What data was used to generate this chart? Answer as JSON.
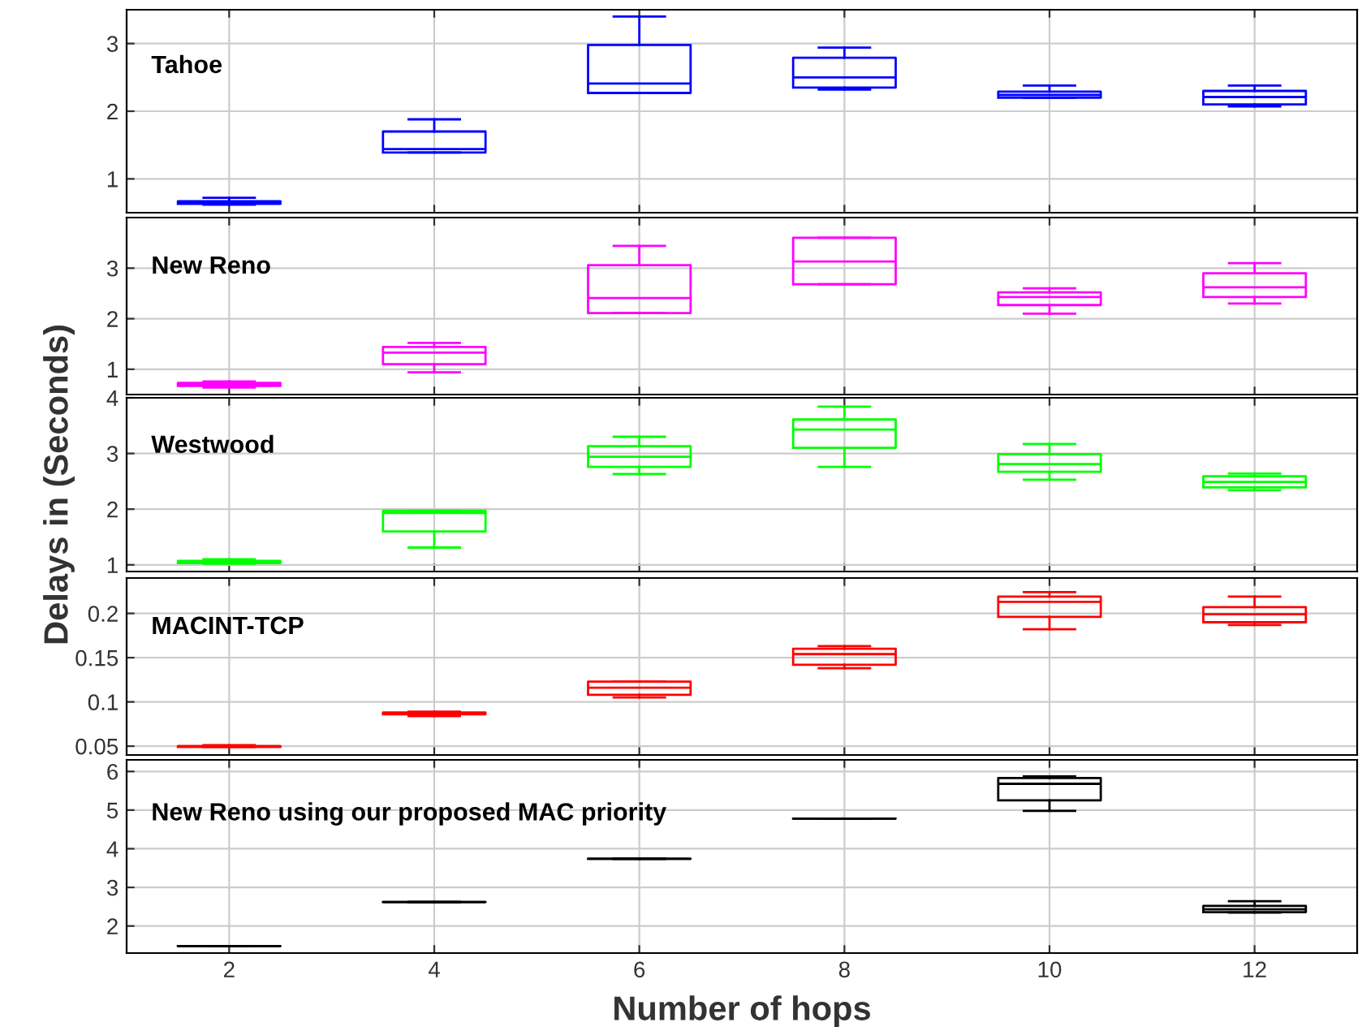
{
  "chart_data": [
    {
      "type": "box",
      "x": [
        2,
        4,
        6,
        8,
        10,
        12
      ],
      "color": "#0000ff",
      "annotations": [
        "Tahoe"
      ],
      "xlim": [
        1,
        13
      ],
      "xticks": [
        2,
        4,
        6,
        8,
        10,
        12
      ],
      "ylim": [
        0.5,
        3.5
      ],
      "yticks": [
        1,
        2,
        3
      ],
      "grid": true,
      "tick_labels": "y",
      "boxes": [
        {
          "low": 0.62,
          "q1": 0.63,
          "median": 0.65,
          "q3": 0.67,
          "high": 0.72
        },
        {
          "low": 1.39,
          "q1": 1.39,
          "median": 1.44,
          "q3": 1.7,
          "high": 1.88
        },
        {
          "low": 2.27,
          "q1": 2.27,
          "median": 2.41,
          "q3": 2.98,
          "high": 3.4
        },
        {
          "low": 2.32,
          "q1": 2.35,
          "median": 2.5,
          "q3": 2.79,
          "high": 2.94
        },
        {
          "low": 2.2,
          "q1": 2.2,
          "median": 2.24,
          "q3": 2.29,
          "high": 2.38
        },
        {
          "low": 2.07,
          "q1": 2.1,
          "median": 2.21,
          "q3": 2.3,
          "high": 2.38
        }
      ]
    },
    {
      "type": "box",
      "x": [
        2,
        4,
        6,
        8,
        10,
        12
      ],
      "color": "#ff00ff",
      "annotations": [
        "New Reno"
      ],
      "xlim": [
        1,
        13
      ],
      "xticks": [
        2,
        4,
        6,
        8,
        10,
        12
      ],
      "ylim": [
        0.5,
        4
      ],
      "yticks": [
        1,
        2,
        3
      ],
      "grid": true,
      "tick_labels": "y",
      "boxes": [
        {
          "low": 0.64,
          "q1": 0.67,
          "median": 0.7,
          "q3": 0.73,
          "high": 0.76
        },
        {
          "low": 0.94,
          "q1": 1.1,
          "median": 1.33,
          "q3": 1.44,
          "high": 1.52
        },
        {
          "low": 2.11,
          "q1": 2.11,
          "median": 2.41,
          "q3": 3.06,
          "high": 3.44
        },
        {
          "low": 2.68,
          "q1": 2.68,
          "median": 3.13,
          "q3": 3.6,
          "high": 3.6
        },
        {
          "low": 2.1,
          "q1": 2.27,
          "median": 2.43,
          "q3": 2.52,
          "high": 2.6
        },
        {
          "low": 2.3,
          "q1": 2.43,
          "median": 2.62,
          "q3": 2.9,
          "high": 3.1
        }
      ]
    },
    {
      "type": "box",
      "x": [
        2,
        4,
        6,
        8,
        10,
        12
      ],
      "color": "#00ff00",
      "annotations": [
        "Westwood"
      ],
      "ylabel": "Delays in (Seconds)",
      "xlim": [
        1,
        13
      ],
      "xticks": [
        2,
        4,
        6,
        8,
        10,
        12
      ],
      "ylim": [
        0.88,
        4
      ],
      "yticks": [
        1,
        2,
        3,
        4
      ],
      "grid": true,
      "tick_labels": "y",
      "boxes": [
        {
          "low": 1.02,
          "q1": 1.03,
          "median": 1.04,
          "q3": 1.07,
          "high": 1.1
        },
        {
          "low": 1.31,
          "q1": 1.6,
          "median": 1.93,
          "q3": 1.97,
          "high": 1.97
        },
        {
          "low": 2.63,
          "q1": 2.76,
          "median": 2.94,
          "q3": 3.13,
          "high": 3.3
        },
        {
          "low": 2.76,
          "q1": 3.1,
          "median": 3.43,
          "q3": 3.61,
          "high": 3.84
        },
        {
          "low": 2.53,
          "q1": 2.67,
          "median": 2.81,
          "q3": 2.99,
          "high": 3.17
        },
        {
          "low": 2.34,
          "q1": 2.39,
          "median": 2.49,
          "q3": 2.59,
          "high": 2.64
        }
      ]
    },
    {
      "type": "box",
      "x": [
        2,
        4,
        6,
        8,
        10,
        12
      ],
      "color": "#ff0000",
      "annotations": [
        "MACINT-TCP"
      ],
      "xlim": [
        1,
        13
      ],
      "xticks": [
        2,
        4,
        6,
        8,
        10,
        12
      ],
      "ylim": [
        0.04,
        0.24
      ],
      "yticks": [
        0.05,
        0.1,
        0.15,
        0.2
      ],
      "grid": true,
      "tick_labels": "y",
      "boxes": [
        {
          "low": 0.049,
          "q1": 0.049,
          "median": 0.05,
          "q3": 0.05,
          "high": 0.051
        },
        {
          "low": 0.084,
          "q1": 0.086,
          "median": 0.087,
          "q3": 0.088,
          "high": 0.089
        },
        {
          "low": 0.105,
          "q1": 0.108,
          "median": 0.116,
          "q3": 0.123,
          "high": 0.123
        },
        {
          "low": 0.138,
          "q1": 0.142,
          "median": 0.154,
          "q3": 0.16,
          "high": 0.163
        },
        {
          "low": 0.182,
          "q1": 0.196,
          "median": 0.213,
          "q3": 0.219,
          "high": 0.224
        },
        {
          "low": 0.187,
          "q1": 0.19,
          "median": 0.199,
          "q3": 0.207,
          "high": 0.219
        }
      ]
    },
    {
      "type": "box",
      "x": [
        2,
        4,
        6,
        8,
        10,
        12
      ],
      "color": "#000000",
      "annotations": [
        "New Reno using our proposed MAC priority"
      ],
      "xlabel": "Number of hops",
      "xlim": [
        1,
        13
      ],
      "xticks": [
        2,
        4,
        6,
        8,
        10,
        12
      ],
      "ylim": [
        1.3,
        6.3
      ],
      "yticks": [
        2,
        3,
        4,
        5,
        6
      ],
      "grid": true,
      "boxes": [
        {
          "low": 1.48,
          "q1": 1.48,
          "median": 1.48,
          "q3": 1.48,
          "high": 1.48
        },
        {
          "low": 2.62,
          "q1": 2.62,
          "median": 2.62,
          "q3": 2.62,
          "high": 2.62
        },
        {
          "low": 3.74,
          "q1": 3.74,
          "median": 3.74,
          "q3": 3.74,
          "high": 3.74
        },
        {
          "low": 4.78,
          "q1": 4.78,
          "median": 4.78,
          "q3": 4.78,
          "high": 4.78
        },
        {
          "low": 4.98,
          "q1": 5.25,
          "median": 5.68,
          "q3": 5.83,
          "high": 5.87
        },
        {
          "low": 2.35,
          "q1": 2.36,
          "median": 2.43,
          "q3": 2.52,
          "high": 2.64
        }
      ]
    }
  ]
}
